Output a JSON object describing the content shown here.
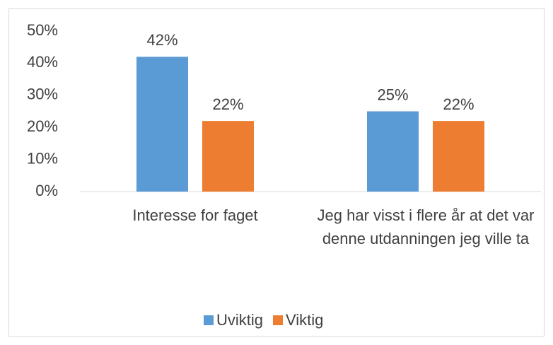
{
  "chart_data": {
    "type": "bar",
    "categories": [
      "Interesse for faget",
      "Jeg har visst i flere år at det var denne utdanningen jeg ville ta"
    ],
    "series": [
      {
        "name": "Uviktig",
        "color": "#5b9bd5",
        "values": [
          42,
          25
        ],
        "value_labels": [
          "42%",
          "25%"
        ]
      },
      {
        "name": "Viktig",
        "color": "#ed7d31",
        "values": [
          22,
          22
        ],
        "value_labels": [
          "22%",
          "22%"
        ]
      }
    ],
    "ylim": [
      0,
      50
    ],
    "yticks": [
      {
        "value": 0,
        "label": "0%"
      },
      {
        "value": 10,
        "label": "10%"
      },
      {
        "value": 20,
        "label": "20%"
      },
      {
        "value": 30,
        "label": "30%"
      },
      {
        "value": 40,
        "label": "40%"
      },
      {
        "value": 50,
        "label": "50%"
      }
    ],
    "grid": false,
    "legend": "bottom"
  }
}
